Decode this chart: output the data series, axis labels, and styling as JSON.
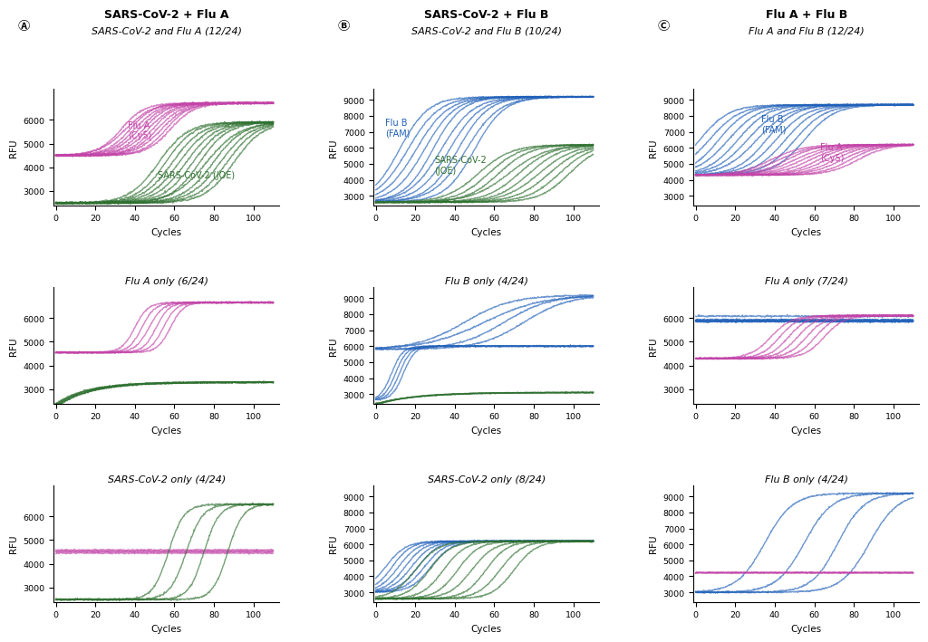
{
  "col_titles": [
    "SARS-CoV-2 + Flu A",
    "SARS-CoV-2 + Flu B",
    "Flu A + Flu B"
  ],
  "col_labels": [
    "A",
    "B",
    "C"
  ],
  "row_subtitles": [
    [
      "SARS-CoV-2 and Flu A (12/24)",
      "SARS-CoV-2 and Flu B (10/24)",
      "Flu A and Flu B (12/24)"
    ],
    [
      "Flu A only (6/24)",
      "Flu B only (4/24)",
      "Flu A only (7/24)"
    ],
    [
      "SARS-CoV-2 only (4/24)",
      "SARS-CoV-2 only (8/24)",
      "Flu B only (4/24)"
    ]
  ],
  "color_magenta": "#C244A8",
  "color_magenta_light": "#CC88CC",
  "color_green_dark": "#2E7030",
  "color_green_light": "#72B074",
  "color_blue_dark": "#2060B8",
  "color_blue_light": "#80B4E0",
  "ylims": [
    [
      [
        2400,
        7300
      ],
      [
        2400,
        9700
      ],
      [
        2400,
        9700
      ]
    ],
    [
      [
        2400,
        7300
      ],
      [
        2400,
        9700
      ],
      [
        2400,
        7300
      ]
    ],
    [
      [
        2400,
        7300
      ],
      [
        2400,
        9700
      ],
      [
        2400,
        9700
      ]
    ]
  ],
  "yticks": [
    [
      [
        3000,
        4000,
        5000,
        6000
      ],
      [
        3000,
        4000,
        5000,
        6000,
        7000,
        8000,
        9000
      ],
      [
        3000,
        4000,
        5000,
        6000,
        7000,
        8000,
        9000
      ]
    ],
    [
      [
        3000,
        4000,
        5000,
        6000
      ],
      [
        3000,
        4000,
        5000,
        6000,
        7000,
        8000,
        9000
      ],
      [
        3000,
        4000,
        5000,
        6000
      ]
    ],
    [
      [
        3000,
        4000,
        5000,
        6000
      ],
      [
        3000,
        4000,
        5000,
        6000,
        7000,
        8000,
        9000
      ],
      [
        3000,
        4000,
        5000,
        6000,
        7000,
        8000,
        9000
      ]
    ]
  ]
}
